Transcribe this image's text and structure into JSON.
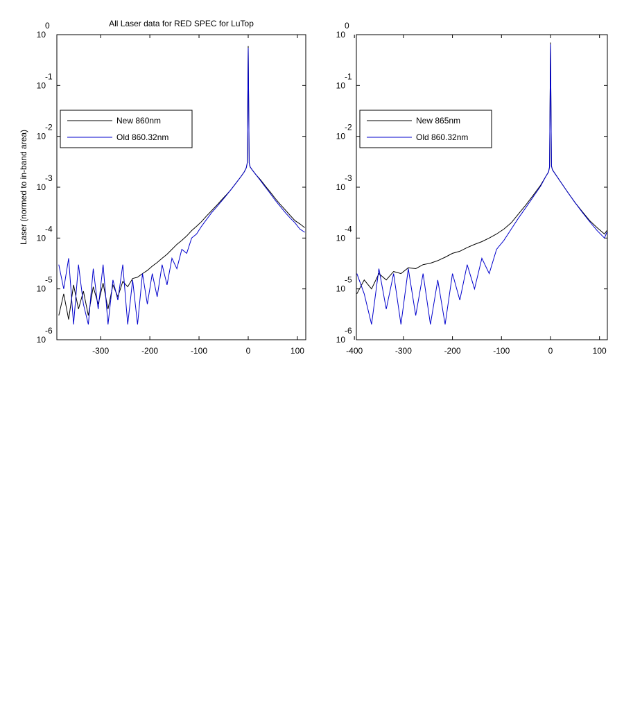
{
  "chart_data": [
    {
      "type": "line",
      "title": "All Laser data for RED SPEC for LuTop",
      "y_label": "Laser (normed to in-band area)",
      "log_y": true,
      "grid": false,
      "legend": "upper left",
      "xlim": [
        -389,
        117
      ],
      "xticks": [
        -300,
        -200,
        -100,
        0,
        100
      ],
      "ylim": [
        1e-06,
        1
      ],
      "yticks": [
        {
          "value": 1,
          "label": "10",
          "exponent": "0"
        },
        {
          "value": 0.1,
          "label": "10",
          "exponent": "-1"
        },
        {
          "value": 0.01,
          "label": "10",
          "exponent": "-2"
        },
        {
          "value": 0.001,
          "label": "10",
          "exponent": "-3"
        },
        {
          "value": 0.0001,
          "label": "10",
          "exponent": "-4"
        },
        {
          "value": 1e-05,
          "label": "10",
          "exponent": "-5"
        },
        {
          "value": 1e-06,
          "label": "10",
          "exponent": "-6"
        }
      ],
      "x": [
        -385,
        -375,
        -365,
        -355,
        -345,
        -335,
        -325,
        -315,
        -305,
        -295,
        -285,
        -275,
        -265,
        -255,
        -245,
        -235,
        -225,
        -215,
        -205,
        -195,
        -185,
        -175,
        -165,
        -155,
        -145,
        -135,
        -125,
        -115,
        -105,
        -95,
        -85,
        -75,
        -65,
        -55,
        -45,
        -35,
        -25,
        -15,
        -8,
        -4,
        -2,
        0,
        2,
        4,
        8,
        15,
        25,
        35,
        45,
        55,
        65,
        75,
        85,
        95,
        105,
        115
      ],
      "series": [
        {
          "name": "New 860nm",
          "color": "#000000",
          "values": [
            3e-06,
            8e-06,
            2.5e-06,
            1.2e-05,
            4e-06,
            9e-06,
            3e-06,
            1.1e-05,
            5e-06,
            1.3e-05,
            4e-06,
            1.2e-05,
            7e-06,
            1.4e-05,
            1.1e-05,
            1.6e-05,
            1.7e-05,
            2e-05,
            2.3e-05,
            2.8e-05,
            3.3e-05,
            4e-05,
            4.8e-05,
            6e-05,
            7.5e-05,
            9e-05,
            0.00011,
            0.00014,
            0.00017,
            0.00021,
            0.00027,
            0.00034,
            0.00043,
            0.00055,
            0.0007,
            0.0009,
            0.0012,
            0.0016,
            0.002,
            0.0024,
            0.003,
            0.6,
            0.003,
            0.0025,
            0.0022,
            0.0018,
            0.0014,
            0.00105,
            0.0008,
            0.0006,
            0.00046,
            0.00036,
            0.00028,
            0.00022,
            0.00019,
            0.00016
          ]
        },
        {
          "name": "Old 860.32nm",
          "color": "#0000cc",
          "values": [
            3e-05,
            1e-05,
            4e-05,
            2e-06,
            3e-05,
            5e-06,
            2e-06,
            2.5e-05,
            4e-06,
            3e-05,
            2e-06,
            1.5e-05,
            6e-06,
            3e-05,
            2e-06,
            1.5e-05,
            2e-06,
            2e-05,
            5e-06,
            2e-05,
            7e-06,
            3e-05,
            1.2e-05,
            4e-05,
            2.5e-05,
            6e-05,
            5e-05,
            0.0001,
            0.00012,
            0.00017,
            0.00023,
            0.00031,
            0.0004,
            0.00052,
            0.00068,
            0.0009,
            0.0012,
            0.0016,
            0.002,
            0.0024,
            0.003,
            0.55,
            0.003,
            0.0025,
            0.0022,
            0.0018,
            0.00135,
            0.001,
            0.00075,
            0.00055,
            0.00042,
            0.00032,
            0.00025,
            0.0002,
            0.00015,
            0.00013
          ]
        }
      ]
    },
    {
      "type": "line",
      "log_y": true,
      "grid": false,
      "legend": "upper left",
      "xlim": [
        -396,
        116
      ],
      "xticks": [
        -400,
        -300,
        -200,
        -100,
        0,
        100
      ],
      "ylim": [
        1e-06,
        1
      ],
      "yticks": [
        {
          "value": 1,
          "label": "10",
          "exponent": "0"
        },
        {
          "value": 0.1,
          "label": "10",
          "exponent": "-1"
        },
        {
          "value": 0.01,
          "label": "10",
          "exponent": "-2"
        },
        {
          "value": 0.001,
          "label": "10",
          "exponent": "-3"
        },
        {
          "value": 0.0001,
          "label": "10",
          "exponent": "-4"
        },
        {
          "value": 1e-05,
          "label": "10",
          "exponent": "-5"
        },
        {
          "value": 1e-06,
          "label": "10",
          "exponent": "-6"
        }
      ],
      "x": [
        -395,
        -380,
        -365,
        -350,
        -335,
        -320,
        -305,
        -290,
        -275,
        -260,
        -245,
        -230,
        -215,
        -200,
        -185,
        -170,
        -155,
        -140,
        -125,
        -110,
        -95,
        -80,
        -65,
        -50,
        -35,
        -20,
        -10,
        -4,
        -2,
        0,
        2,
        4,
        10,
        20,
        35,
        50,
        65,
        80,
        95,
        110,
        115
      ],
      "series": [
        {
          "name": "New 865nm",
          "color": "#000000",
          "values": [
            8e-06,
            1.5e-05,
            1e-05,
            2e-05,
            1.5e-05,
            2.2e-05,
            2e-05,
            2.6e-05,
            2.5e-05,
            3e-05,
            3.2e-05,
            3.6e-05,
            4.2e-05,
            5e-05,
            5.5e-05,
            6.5e-05,
            7.5e-05,
            8.5e-05,
            0.0001,
            0.00012,
            0.00015,
            0.0002,
            0.0003,
            0.00045,
            0.0007,
            0.0011,
            0.0016,
            0.002,
            0.0025,
            0.7,
            0.0026,
            0.0022,
            0.0018,
            0.0013,
            0.0008,
            0.0005,
            0.00033,
            0.00022,
            0.00016,
            0.00012,
            0.00014
          ]
        },
        {
          "name": "Old 860.32nm",
          "color": "#0000cc",
          "values": [
            2e-05,
            8e-06,
            2e-06,
            2.5e-05,
            4e-06,
            2e-05,
            2e-06,
            2.5e-05,
            3e-06,
            2e-05,
            2e-06,
            1.5e-05,
            2e-06,
            2e-05,
            6e-06,
            3e-05,
            1e-05,
            4e-05,
            2e-05,
            6e-05,
            9e-05,
            0.00015,
            0.00025,
            0.0004,
            0.00065,
            0.00105,
            0.0016,
            0.002,
            0.0025,
            0.65,
            0.0026,
            0.0022,
            0.0018,
            0.0013,
            0.0008,
            0.0005,
            0.00032,
            0.00021,
            0.00014,
            0.0001,
            0.00013
          ]
        }
      ]
    }
  ]
}
